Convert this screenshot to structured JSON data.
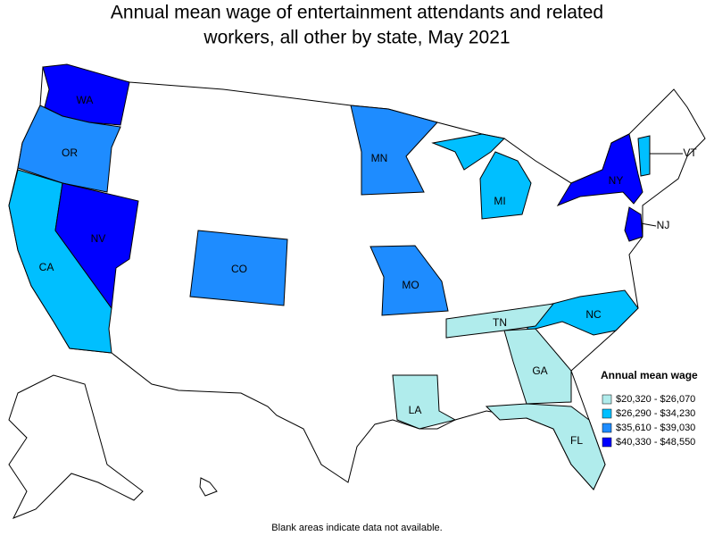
{
  "title_lines": [
    "Annual mean wage of entertainment attendants and related",
    "workers, all other by state, May 2021"
  ],
  "legend": {
    "title": "Annual mean wage",
    "items": [
      {
        "label": "$20,320 - $26,070",
        "color": "#b0ecec"
      },
      {
        "label": "$26,290 - $34,230",
        "color": "#00bfff"
      },
      {
        "label": "$35,610 - $39,030",
        "color": "#1e8cff"
      },
      {
        "label": "$40,330 - $48,550",
        "color": "#0000ff"
      }
    ]
  },
  "states": [
    {
      "label": "WA",
      "legend_item": 3
    },
    {
      "label": "OR",
      "legend_item": 2
    },
    {
      "label": "CA",
      "legend_item": 1
    },
    {
      "label": "NV",
      "legend_item": 3
    },
    {
      "label": "CO",
      "legend_item": 2
    },
    {
      "label": "MN",
      "legend_item": 2
    },
    {
      "label": "MO",
      "legend_item": 2
    },
    {
      "label": "MI",
      "legend_item": 1
    },
    {
      "label": "NY",
      "legend_item": 3
    },
    {
      "label": "VT",
      "legend_item": 1
    },
    {
      "label": "NJ",
      "legend_item": 3
    },
    {
      "label": "NC",
      "legend_item": 1
    },
    {
      "label": "TN",
      "legend_item": 0
    },
    {
      "label": "GA",
      "legend_item": 0
    },
    {
      "label": "LA",
      "legend_item": 0
    },
    {
      "label": "FL",
      "legend_item": 0
    }
  ],
  "footnote": "Blank areas indicate data not available."
}
